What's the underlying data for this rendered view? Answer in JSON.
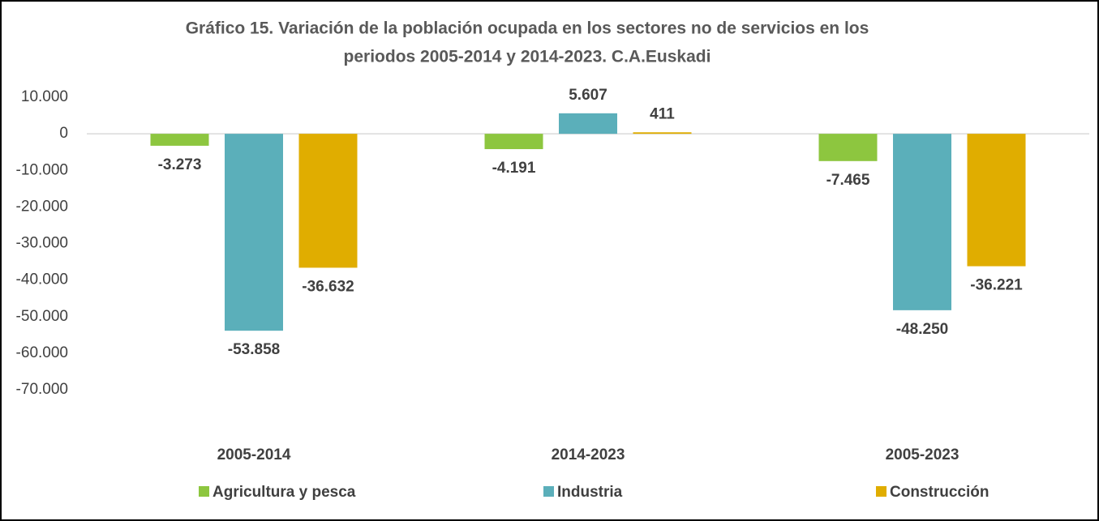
{
  "chart_data": {
    "type": "bar",
    "title": [
      "Gráfico 15. Variación de la población ocupada en los sectores no de servicios en los",
      "periodos 2005-2014 y 2014-2023. C.A.Euskadi"
    ],
    "categories": [
      "2005-2014",
      "2014-2023",
      "2005-2023"
    ],
    "series": [
      {
        "name": "Agricultura y pesca",
        "color": "#8dc63f",
        "values": [
          -3273,
          -4191,
          -7465
        ],
        "value_labels": [
          "-3.273",
          "-4.191",
          "-7.465"
        ]
      },
      {
        "name": "Industria",
        "color": "#5bafba",
        "values": [
          -53858,
          5607,
          -48250
        ],
        "value_labels": [
          "-53.858",
          "5.607",
          "-48.250"
        ]
      },
      {
        "name": "Construcción",
        "color": "#e0ad00",
        "values": [
          -36632,
          411,
          -36221
        ],
        "value_labels": [
          "-36.632",
          "411",
          "-36.221"
        ]
      }
    ],
    "ylim": [
      -70000,
      10000
    ],
    "yticks": [
      {
        "value": 10000,
        "label": "10.000"
      },
      0,
      {
        "value": -10000,
        "label": "-10.000"
      },
      {
        "value": -20000,
        "label": "-20.000"
      },
      {
        "value": -30000,
        "label": "-30.000"
      },
      {
        "value": -40000,
        "label": "-40.000"
      },
      {
        "value": -50000,
        "label": "-50.000"
      },
      {
        "value": -60000,
        "label": "-60.000"
      },
      {
        "value": -70000,
        "label": "-70.000"
      }
    ],
    "grid": false,
    "legend": "bottom"
  }
}
